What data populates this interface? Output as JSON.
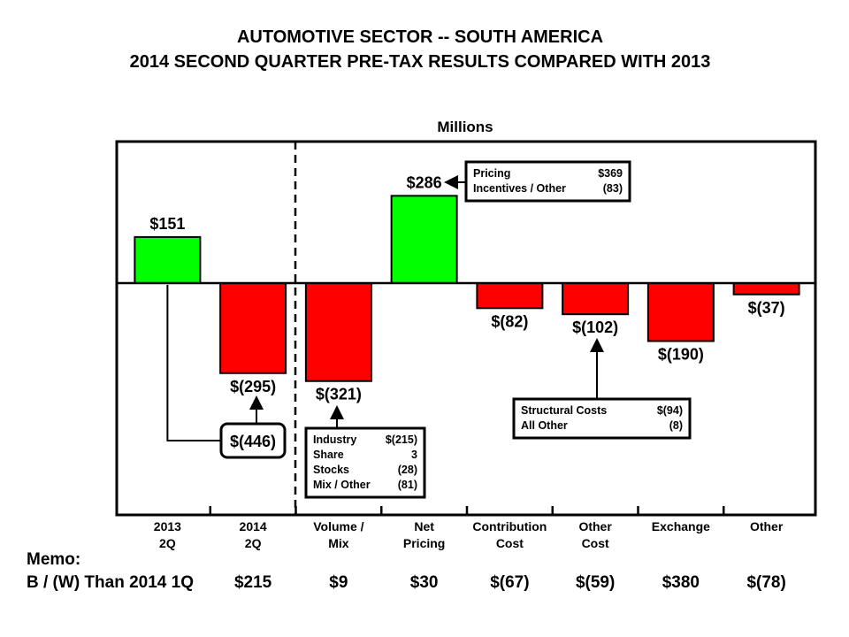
{
  "chart_data": {
    "type": "bar",
    "title": "AUTOMOTIVE SECTOR -- SOUTH AMERICA",
    "subtitle": "2014 SECOND QUARTER PRE-TAX RESULTS COMPARED WITH 2013",
    "ylabel": "Millions",
    "categories": [
      [
        "2013",
        "2Q"
      ],
      [
        "2014",
        "2Q"
      ],
      [
        "Volume /",
        "Mix"
      ],
      [
        "Net",
        "Pricing"
      ],
      [
        "Contribution",
        "Cost"
      ],
      [
        "Other",
        "Cost"
      ],
      [
        "Exchange",
        ""
      ],
      [
        "Other",
        ""
      ]
    ],
    "values": [
      151,
      -295,
      -321,
      286,
      -82,
      -102,
      -190,
      -37
    ],
    "value_labels": [
      "$151",
      "$(295)",
      "$(321)",
      "$286",
      "$(82)",
      "$(102)",
      "$(190)",
      "$(37)"
    ],
    "colors": {
      "positive": "#00ff00",
      "negative": "#ff0000"
    },
    "annotations": {
      "change": "$(446)",
      "volume_mix": [
        [
          "Industry",
          "$(215)"
        ],
        [
          "Share",
          "3"
        ],
        [
          "Stocks",
          "(28)"
        ],
        [
          "Mix / Other",
          "(81)"
        ]
      ],
      "pricing": [
        [
          "Pricing",
          "$369"
        ],
        [
          "Incentives / Other",
          "(83)"
        ]
      ],
      "other_cost": [
        [
          "Structural Costs",
          "$(94)"
        ],
        [
          "All Other",
          "(8)"
        ]
      ]
    },
    "memo": {
      "title": "Memo:",
      "row_label": "B / (W) Than 2014 1Q",
      "values": [
        "$215",
        "$9",
        "$30",
        "$(67)",
        "$(59)",
        "$380",
        "$(78)"
      ]
    }
  }
}
